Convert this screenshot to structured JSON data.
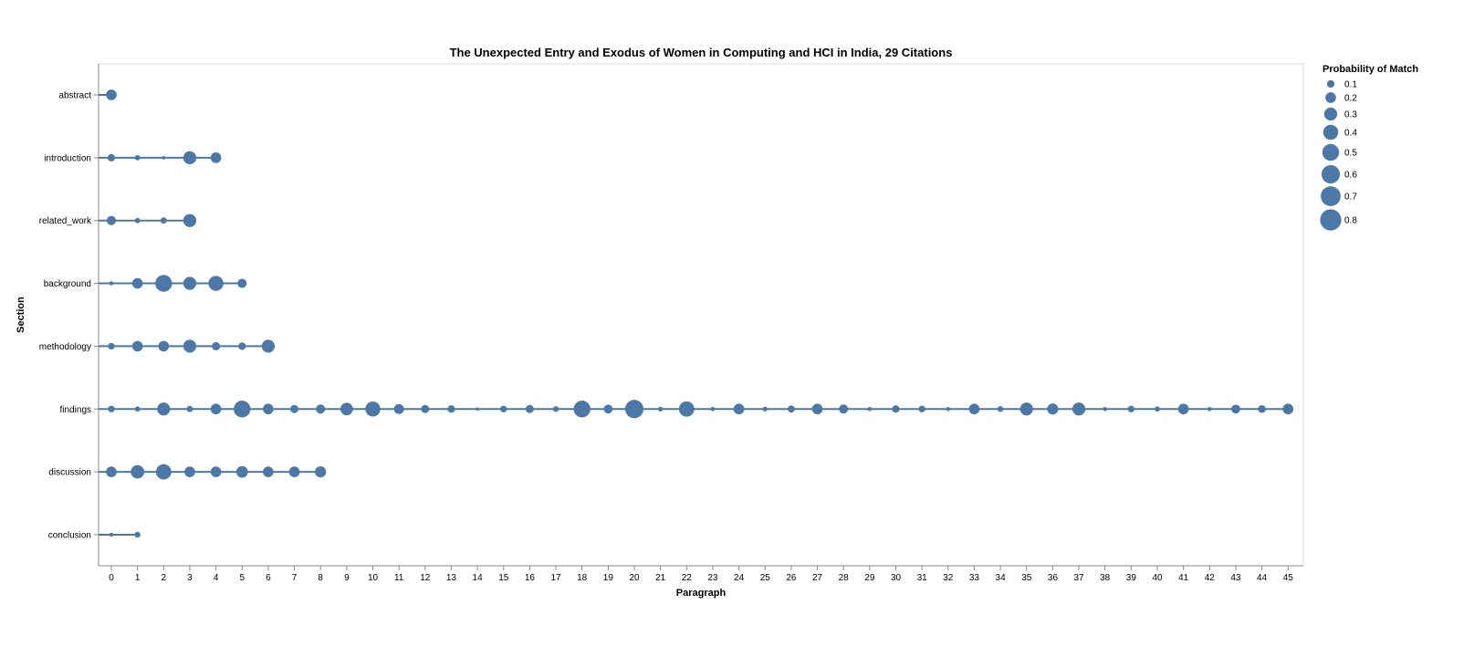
{
  "chart_data": {
    "type": "scatter",
    "title": "The Unexpected Entry and Exodus of Women in Computing and HCI in India, 29 Citations",
    "xlabel": "Paragraph",
    "ylabel": "Section",
    "xlim": [
      0,
      45
    ],
    "grid": false,
    "legend_position": "right",
    "color": "#4c78a8",
    "categories": [
      "abstract",
      "introduction",
      "related_work",
      "background",
      "methodology",
      "findings",
      "discussion",
      "conclusion"
    ],
    "legend": {
      "title": "Probability of Match",
      "values": [
        0.1,
        0.2,
        0.3,
        0.4,
        0.5,
        0.6,
        0.7,
        0.8
      ],
      "labels": [
        "0.1",
        "0.2",
        "0.3",
        "0.4",
        "0.5",
        "0.6",
        "0.7",
        "0.8"
      ]
    },
    "series": [
      {
        "section": "abstract",
        "points": [
          [
            0,
            0.2
          ]
        ]
      },
      {
        "section": "introduction",
        "points": [
          [
            0,
            0.1
          ],
          [
            1,
            0.05
          ],
          [
            2,
            0.02
          ],
          [
            3,
            0.3
          ],
          [
            4,
            0.2
          ]
        ]
      },
      {
        "section": "related_work",
        "points": [
          [
            0,
            0.15
          ],
          [
            1,
            0.05
          ],
          [
            2,
            0.07
          ],
          [
            3,
            0.3
          ]
        ]
      },
      {
        "section": "background",
        "points": [
          [
            0,
            0.03
          ],
          [
            1,
            0.2
          ],
          [
            2,
            0.5
          ],
          [
            3,
            0.3
          ],
          [
            4,
            0.4
          ],
          [
            5,
            0.15
          ]
        ]
      },
      {
        "section": "methodology",
        "points": [
          [
            0,
            0.08
          ],
          [
            1,
            0.2
          ],
          [
            2,
            0.2
          ],
          [
            3,
            0.3
          ],
          [
            4,
            0.12
          ],
          [
            5,
            0.1
          ],
          [
            6,
            0.3
          ]
        ]
      },
      {
        "section": "findings",
        "points": [
          [
            0,
            0.08
          ],
          [
            1,
            0.05
          ],
          [
            2,
            0.3
          ],
          [
            3,
            0.07
          ],
          [
            4,
            0.2
          ],
          [
            5,
            0.5
          ],
          [
            6,
            0.2
          ],
          [
            7,
            0.12
          ],
          [
            8,
            0.15
          ],
          [
            9,
            0.28
          ],
          [
            10,
            0.4
          ],
          [
            11,
            0.18
          ],
          [
            12,
            0.12
          ],
          [
            13,
            0.1
          ],
          [
            14,
            0.02
          ],
          [
            15,
            0.08
          ],
          [
            16,
            0.12
          ],
          [
            17,
            0.06
          ],
          [
            18,
            0.5
          ],
          [
            19,
            0.14
          ],
          [
            20,
            0.6
          ],
          [
            21,
            0.04
          ],
          [
            22,
            0.42
          ],
          [
            23,
            0.03
          ],
          [
            24,
            0.2
          ],
          [
            25,
            0.04
          ],
          [
            26,
            0.09
          ],
          [
            27,
            0.2
          ],
          [
            28,
            0.15
          ],
          [
            29,
            0.03
          ],
          [
            30,
            0.1
          ],
          [
            31,
            0.08
          ],
          [
            32,
            0.03
          ],
          [
            33,
            0.2
          ],
          [
            34,
            0.06
          ],
          [
            35,
            0.3
          ],
          [
            36,
            0.22
          ],
          [
            37,
            0.3
          ],
          [
            38,
            0.03
          ],
          [
            39,
            0.08
          ],
          [
            40,
            0.05
          ],
          [
            41,
            0.2
          ],
          [
            42,
            0.03
          ],
          [
            43,
            0.14
          ],
          [
            44,
            0.11
          ],
          [
            45,
            0.2
          ]
        ]
      },
      {
        "section": "discussion",
        "points": [
          [
            0,
            0.2
          ],
          [
            1,
            0.32
          ],
          [
            2,
            0.42
          ],
          [
            3,
            0.2
          ],
          [
            4,
            0.2
          ],
          [
            5,
            0.24
          ],
          [
            6,
            0.2
          ],
          [
            7,
            0.2
          ],
          [
            8,
            0.22
          ]
        ]
      },
      {
        "section": "conclusion",
        "points": [
          [
            0,
            0.03
          ],
          [
            1,
            0.06
          ]
        ]
      }
    ]
  }
}
